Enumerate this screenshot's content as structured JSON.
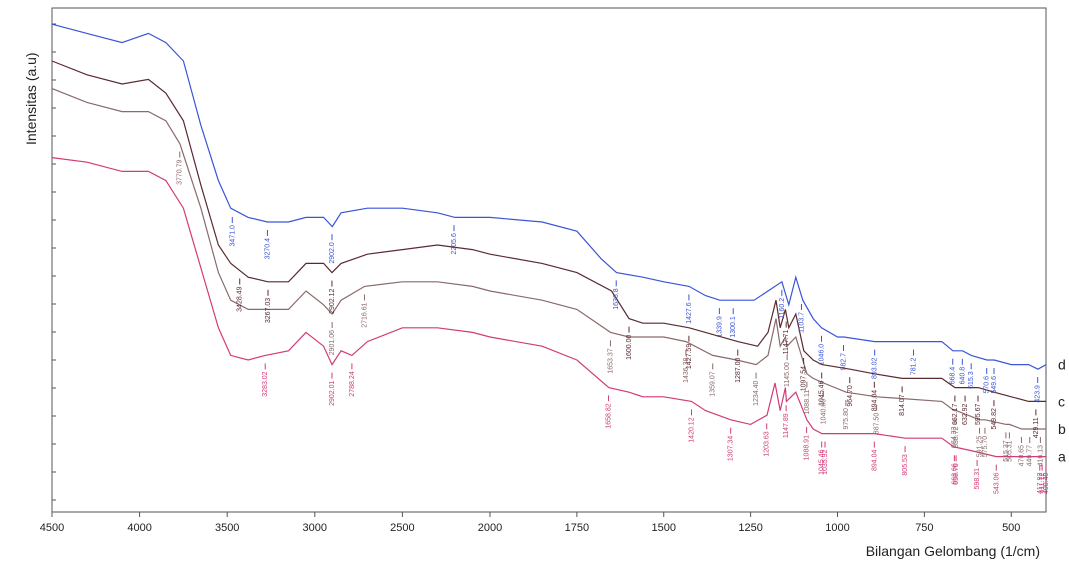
{
  "chart_data": {
    "type": "line",
    "xlabel": "Bilangan Gelombang (1/cm)",
    "ylabel": "Intensitas (a.u)",
    "x_ticks": [
      "4500",
      "4000",
      "3500",
      "3000",
      "2500",
      "2000",
      "1750",
      "1500",
      "1250",
      "1000",
      "750",
      "500"
    ],
    "xlim_ticks": [
      4500,
      400
    ],
    "grid": false,
    "colors": {
      "a": "#d23a78",
      "b": "#8a6a6a",
      "c": "#5a2a30",
      "d": "#3a55d8"
    },
    "series": [
      {
        "name": "d",
        "peaks": [
          "3471.0",
          "3270.4",
          "2902.0",
          "2205.6",
          "1636.8",
          "1427.6",
          "1339.9",
          "1300.1",
          "1160.2",
          "1103.7",
          "1046.0",
          "982.7",
          "893.02",
          "781.2",
          "668.4",
          "640.8",
          "615.3",
          "570.6",
          "549.6",
          "423.9"
        ],
        "x": [
          4500,
          4300,
          4100,
          3950,
          3850,
          3750,
          3650,
          3550,
          3480,
          3380,
          3270,
          3150,
          3050,
          2950,
          2900,
          2850,
          2700,
          2500,
          2300,
          2200,
          2000,
          1850,
          1750,
          1680,
          1636,
          1560,
          1500,
          1427,
          1380,
          1339,
          1300,
          1240,
          1200,
          1160,
          1140,
          1120,
          1100,
          1070,
          1046,
          1000,
          982,
          893,
          781,
          700,
          668,
          640,
          615,
          570,
          549,
          500,
          450,
          423,
          400
        ],
        "y": [
          98,
          96,
          94,
          96,
          94,
          90,
          76,
          64,
          58,
          56,
          55,
          55,
          56,
          56,
          54,
          57,
          58,
          58,
          57,
          56,
          56,
          55,
          53,
          47,
          44,
          43,
          42,
          41,
          39,
          38,
          38,
          38,
          40,
          42,
          37,
          43,
          38,
          34,
          32,
          30,
          30,
          29,
          29,
          29,
          27,
          27,
          26,
          25,
          25,
          24,
          24,
          23,
          24
        ]
      },
      {
        "name": "c",
        "peaks": [
          "3428.49",
          "3267.03",
          "2902.12",
          "1600.00",
          "1427.59",
          "1287.00",
          "1147.71",
          "1097.54",
          "1045.46",
          "964.70",
          "894.04",
          "814.07",
          "662.17",
          "632.92",
          "595.67",
          "549.82",
          "429.11"
        ],
        "x": [
          4500,
          4300,
          4100,
          3950,
          3850,
          3750,
          3650,
          3550,
          3480,
          3380,
          3267,
          3150,
          3050,
          2950,
          2902,
          2850,
          2700,
          2500,
          2300,
          2100,
          2000,
          1850,
          1750,
          1650,
          1600,
          1560,
          1500,
          1427,
          1380,
          1287,
          1230,
          1200,
          1177,
          1165,
          1150,
          1140,
          1120,
          1097,
          1070,
          1045,
          964,
          894,
          814,
          700,
          662,
          632,
          595,
          549,
          500,
          450,
          429,
          400
        ],
        "y": [
          90,
          87,
          85,
          86,
          83,
          77,
          63,
          50,
          46,
          43,
          42,
          42,
          46,
          46,
          44,
          46,
          48,
          49,
          50,
          49,
          48,
          46,
          44,
          40,
          34,
          33,
          33,
          32,
          31,
          29,
          28,
          31,
          38,
          32,
          36,
          32,
          35,
          27,
          25,
          24,
          23,
          22,
          21,
          21,
          19,
          19,
          19,
          18,
          17,
          16,
          16,
          16
        ]
      },
      {
        "name": "b",
        "peaks": [
          "3770.79",
          "2901.06",
          "2716.61",
          "1653.37",
          "1436.38",
          "1359.07",
          "1234.40",
          "1145.00",
          "1088.11",
          "1040.60",
          "975.80",
          "887.50",
          "664.33",
          "658.72",
          "591.25",
          "575.70",
          "515.37",
          "505.31",
          "470.65",
          "446.77",
          "416.13"
        ],
        "x": [
          4500,
          4300,
          4100,
          3950,
          3850,
          3770,
          3650,
          3550,
          3480,
          3380,
          3270,
          3150,
          3050,
          2950,
          2901,
          2850,
          2716,
          2500,
          2300,
          2100,
          2000,
          1850,
          1750,
          1653,
          1600,
          1560,
          1500,
          1436,
          1359,
          1290,
          1234,
          1200,
          1177,
          1165,
          1150,
          1145,
          1120,
          1088,
          1070,
          1040,
          975,
          887,
          700,
          664,
          658,
          591,
          575,
          515,
          505,
          470,
          446,
          416,
          400
        ],
        "y": [
          84,
          81,
          79,
          79,
          77,
          72,
          58,
          44,
          38,
          36,
          36,
          36,
          40,
          37,
          35,
          38,
          41,
          42,
          42,
          41,
          40,
          38,
          36,
          31,
          30,
          30,
          30,
          29,
          26,
          25,
          24,
          26,
          34,
          28,
          30,
          28,
          30,
          22,
          21,
          20,
          18,
          17,
          16,
          14,
          14,
          12,
          12,
          11,
          11,
          10,
          10,
          10,
          10
        ]
      },
      {
        "name": "a",
        "peaks": [
          "3283.02",
          "2902.01",
          "2788.24",
          "1658.82",
          "1420.12",
          "1307.34",
          "1203.63",
          "1147.89",
          "1088.91",
          "1045.46",
          "1035.92",
          "894.04",
          "805.53",
          "663.66",
          "658.76",
          "598.31",
          "543.06",
          "417.92",
          "400.40",
          "411.12"
        ],
        "x": [
          4500,
          4300,
          4100,
          3950,
          3850,
          3750,
          3650,
          3550,
          3480,
          3380,
          3283,
          3150,
          3050,
          2950,
          2902,
          2850,
          2788,
          2700,
          2500,
          2300,
          2100,
          2000,
          1850,
          1750,
          1658,
          1600,
          1560,
          1500,
          1420,
          1380,
          1307,
          1250,
          1203,
          1180,
          1165,
          1150,
          1147,
          1120,
          1088,
          1070,
          1045,
          1035,
          894,
          805,
          700,
          663,
          658,
          598,
          543,
          500,
          450,
          417,
          400
        ],
        "y": [
          69,
          68,
          66,
          66,
          64,
          58,
          45,
          32,
          26,
          25,
          26,
          27,
          31,
          28,
          24,
          27,
          26,
          29,
          32,
          32,
          31,
          30,
          28,
          25,
          19,
          18,
          17,
          17,
          16,
          14,
          12,
          11,
          13,
          20,
          14,
          19,
          16,
          18,
          12,
          10,
          9,
          9,
          9,
          8,
          8,
          6,
          6,
          5,
          4,
          4,
          4,
          4,
          4
        ]
      }
    ]
  }
}
